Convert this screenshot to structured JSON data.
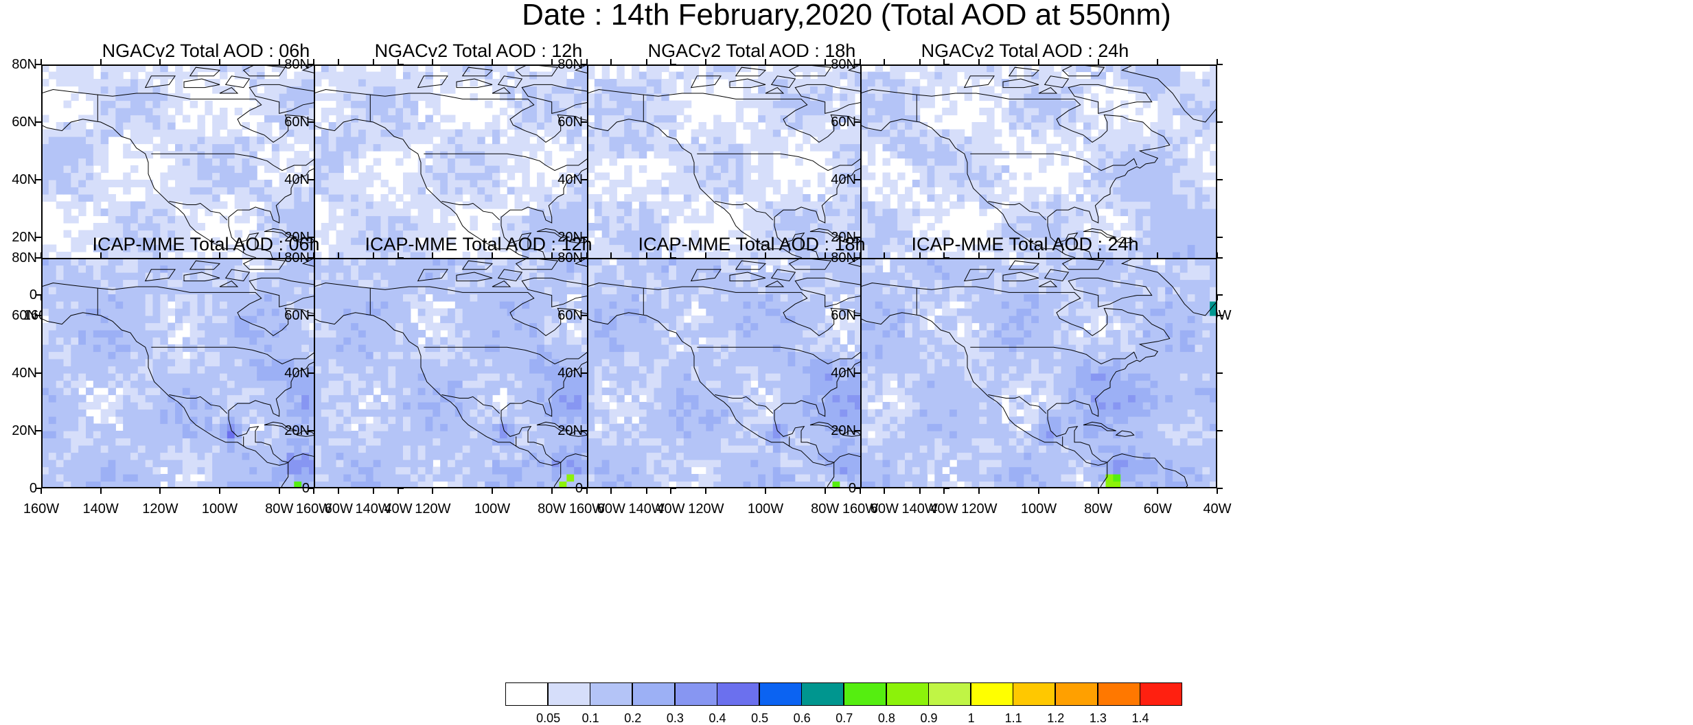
{
  "figure": {
    "title": "Date : 14th February,2020 (Total AOD at 550nm)"
  },
  "axes": {
    "lat_labels": [
      "80N",
      "60N",
      "40N",
      "20N",
      "0"
    ],
    "lon_labels": [
      "160W",
      "140W",
      "120W",
      "100W",
      "80W",
      "60W",
      "40W"
    ],
    "lat_range": [
      0,
      80
    ],
    "lon_range": [
      -160,
      -40
    ]
  },
  "panels": [
    {
      "title": "NGACv2 Total AOD : 06h",
      "model": "NGACv2",
      "hour": "06h"
    },
    {
      "title": "NGACv2 Total AOD : 12h",
      "model": "NGACv2",
      "hour": "12h"
    },
    {
      "title": "NGACv2 Total AOD : 18h",
      "model": "NGACv2",
      "hour": "18h"
    },
    {
      "title": "NGACv2 Total AOD : 24h",
      "model": "NGACv2",
      "hour": "24h"
    },
    {
      "title": "ICAP-MME Total AOD : 06h",
      "model": "ICAP-MME",
      "hour": "06h"
    },
    {
      "title": "ICAP-MME Total AOD : 12h",
      "model": "ICAP-MME",
      "hour": "12h"
    },
    {
      "title": "ICAP-MME Total AOD : 18h",
      "model": "ICAP-MME",
      "hour": "18h"
    },
    {
      "title": "ICAP-MME Total AOD : 24h",
      "model": "ICAP-MME",
      "hour": "24h"
    }
  ],
  "colorbar": {
    "labels": [
      "0.05",
      "0.1",
      "0.2",
      "0.3",
      "0.4",
      "0.5",
      "0.6",
      "0.7",
      "0.8",
      "0.9",
      "1",
      "1.1",
      "1.2",
      "1.3",
      "1.4"
    ],
    "colors": [
      "#ffffff",
      "#d6defa",
      "#b4c4f7",
      "#9cb0f5",
      "#8796f2",
      "#6b70ee",
      "#0b63f2",
      "#00968f",
      "#55ee10",
      "#8cf20a",
      "#c0f545",
      "#ffff00",
      "#ffc800",
      "#ffa000",
      "#ff7800",
      "#ff2010"
    ]
  }
}
